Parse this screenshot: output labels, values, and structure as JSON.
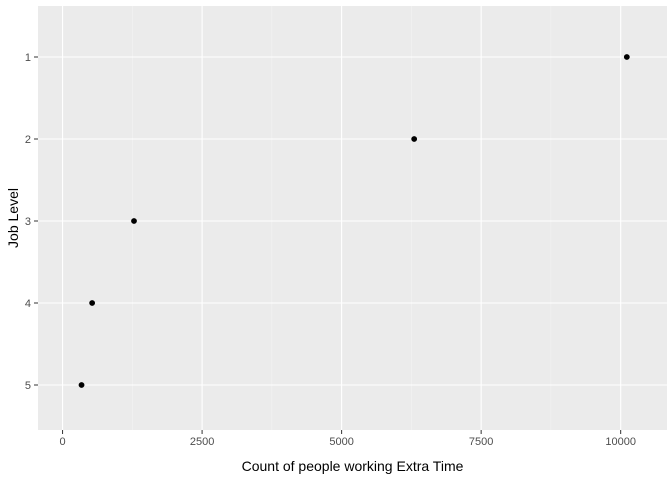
{
  "chart_data": {
    "type": "scatter",
    "title": "",
    "xlabel": "Count of people working Extra Time",
    "ylabel": "Job Level",
    "x_ticks": [
      0,
      2500,
      5000,
      7500,
      10000
    ],
    "x_tick_labels": [
      "0",
      "2500",
      "5000",
      "7500",
      "10000"
    ],
    "y_categories": [
      "1",
      "2",
      "3",
      "4",
      "5"
    ],
    "xlim": [
      -440,
      10830
    ],
    "grid": true,
    "legend": "none",
    "points": [
      {
        "y": "1",
        "x": 10110
      },
      {
        "y": "2",
        "x": 6300
      },
      {
        "y": "3",
        "x": 1280
      },
      {
        "y": "4",
        "x": 530
      },
      {
        "y": "5",
        "x": 340
      }
    ],
    "colors": {
      "panel_background": "#ebebeb",
      "grid_major": "#ffffff",
      "grid_minor": "#f5f5f5",
      "point": "#000000",
      "tick": "#333333"
    }
  }
}
